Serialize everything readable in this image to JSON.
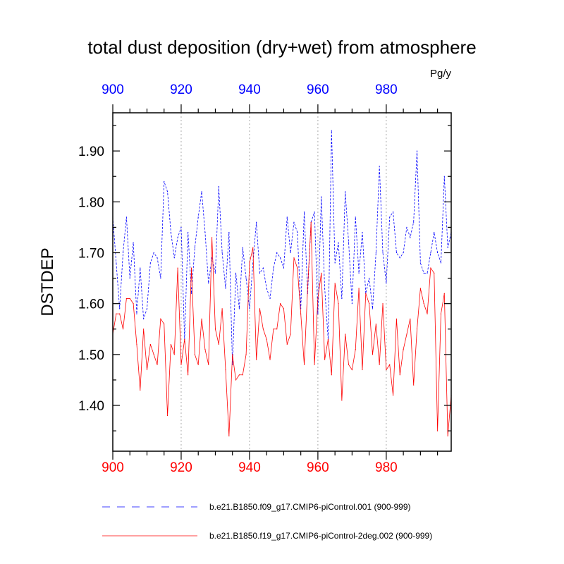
{
  "chart_data": {
    "type": "line",
    "title": "total dust deposition (dry+wet) from atmosphere",
    "units": "Pg/y",
    "ylabel": "DSTDEP",
    "xlabel": "",
    "xlim": [
      900,
      999
    ],
    "ylim": [
      1.31,
      1.975
    ],
    "x_ticks": [
      900,
      920,
      940,
      960,
      980
    ],
    "y_ticks": [
      1.4,
      1.5,
      1.6,
      1.7,
      1.8,
      1.9
    ],
    "top_axis_color": "#0000ff",
    "bottom_axis_color": "#ff0000",
    "gridlines": "vertical dotted at x ticks",
    "x": [
      900,
      901,
      902,
      903,
      904,
      905,
      906,
      907,
      908,
      909,
      910,
      911,
      912,
      913,
      914,
      915,
      916,
      917,
      918,
      919,
      920,
      921,
      922,
      923,
      924,
      925,
      926,
      927,
      928,
      929,
      930,
      931,
      932,
      933,
      934,
      935,
      936,
      937,
      938,
      939,
      940,
      941,
      942,
      943,
      944,
      945,
      946,
      947,
      948,
      949,
      950,
      951,
      952,
      953,
      954,
      955,
      956,
      957,
      958,
      959,
      960,
      961,
      962,
      963,
      964,
      965,
      966,
      967,
      968,
      969,
      970,
      971,
      972,
      973,
      974,
      975,
      976,
      977,
      978,
      979,
      980,
      981,
      982,
      983,
      984,
      985,
      986,
      987,
      988,
      989,
      990,
      991,
      992,
      993,
      994,
      995,
      996,
      997,
      998,
      999
    ],
    "series": [
      {
        "name": "b.e21.B1850.f09_g17.CMIP6-piControl.001 (900-999)",
        "color": "#0000ff",
        "dash": "dashed",
        "values": [
          1.77,
          1.68,
          1.59,
          1.7,
          1.77,
          1.65,
          1.72,
          1.58,
          1.67,
          1.57,
          1.59,
          1.68,
          1.7,
          1.69,
          1.65,
          1.84,
          1.82,
          1.74,
          1.69,
          1.73,
          1.75,
          1.53,
          1.74,
          1.62,
          1.71,
          1.77,
          1.82,
          1.74,
          1.64,
          1.69,
          1.66,
          1.83,
          1.7,
          1.63,
          1.74,
          1.48,
          1.66,
          1.59,
          1.71,
          1.65,
          1.59,
          1.68,
          1.76,
          1.66,
          1.67,
          1.63,
          1.61,
          1.67,
          1.7,
          1.69,
          1.67,
          1.77,
          1.7,
          1.76,
          1.74,
          1.59,
          1.78,
          1.62,
          1.76,
          1.78,
          1.58,
          1.81,
          1.63,
          1.53,
          1.94,
          1.68,
          1.72,
          1.61,
          1.82,
          1.72,
          1.6,
          1.77,
          1.66,
          1.74,
          1.62,
          1.65,
          1.59,
          1.7,
          1.87,
          1.7,
          1.64,
          1.77,
          1.78,
          1.7,
          1.69,
          1.7,
          1.75,
          1.73,
          1.76,
          1.9,
          1.68,
          1.66,
          1.66,
          1.7,
          1.74,
          1.7,
          1.68,
          1.85,
          1.71,
          1.74
        ]
      },
      {
        "name": "b.e21.B1850.f19_g17.CMIP6-piControl-2deg.002 (900-999)",
        "color": "#ff0000",
        "dash": "solid",
        "values": [
          1.54,
          1.58,
          1.58,
          1.55,
          1.61,
          1.61,
          1.6,
          1.52,
          1.43,
          1.55,
          1.47,
          1.52,
          1.5,
          1.48,
          1.57,
          1.56,
          1.38,
          1.52,
          1.5,
          1.67,
          1.48,
          1.53,
          1.46,
          1.67,
          1.5,
          1.48,
          1.57,
          1.51,
          1.48,
          1.73,
          1.55,
          1.52,
          1.59,
          1.47,
          1.34,
          1.5,
          1.45,
          1.46,
          1.46,
          1.5,
          1.68,
          1.71,
          1.49,
          1.59,
          1.55,
          1.53,
          1.49,
          1.55,
          1.55,
          1.6,
          1.59,
          1.52,
          1.54,
          1.69,
          1.67,
          1.58,
          1.48,
          1.63,
          1.76,
          1.48,
          1.61,
          1.66,
          1.49,
          1.53,
          1.46,
          1.64,
          1.6,
          1.41,
          1.54,
          1.48,
          1.47,
          1.51,
          1.63,
          1.47,
          1.62,
          1.6,
          1.5,
          1.56,
          1.48,
          1.6,
          1.47,
          1.48,
          1.42,
          1.57,
          1.46,
          1.51,
          1.54,
          1.57,
          1.44,
          1.55,
          1.63,
          1.6,
          1.58,
          1.67,
          1.66,
          1.35,
          1.58,
          1.62,
          1.34,
          1.42
        ]
      }
    ]
  }
}
